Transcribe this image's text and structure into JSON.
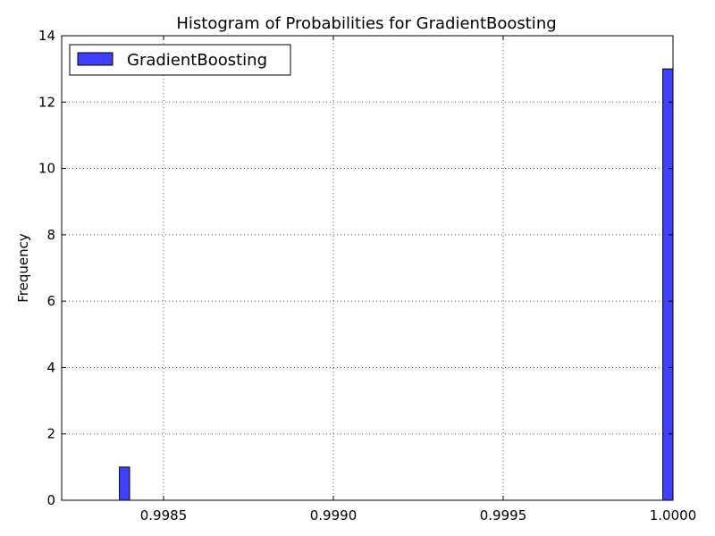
{
  "chart_data": {
    "type": "bar",
    "title": "Histogram of Probabilities for GradientBoosting",
    "xlabel": "",
    "ylabel": "Frequency",
    "xlim": [
      0.9982,
      1.0
    ],
    "ylim": [
      0,
      14
    ],
    "x_ticks": [
      0.9985,
      0.999,
      0.9995,
      1.0
    ],
    "x_tick_labels": [
      "0.9985",
      "0.9990",
      "0.9995",
      "1.0000"
    ],
    "y_ticks": [
      0,
      2,
      4,
      6,
      8,
      10,
      12,
      14
    ],
    "y_tick_labels": [
      "0",
      "2",
      "4",
      "6",
      "8",
      "10",
      "12",
      "14"
    ],
    "grid": true,
    "legend_position": "top-left",
    "series": [
      {
        "name": "GradientBoosting",
        "color": "#4040ff",
        "bins": [
          {
            "x0": 0.99837,
            "x1": 0.9984,
            "count": 1
          },
          {
            "x0": 0.99997,
            "x1": 1.0,
            "count": 13
          }
        ]
      }
    ]
  }
}
